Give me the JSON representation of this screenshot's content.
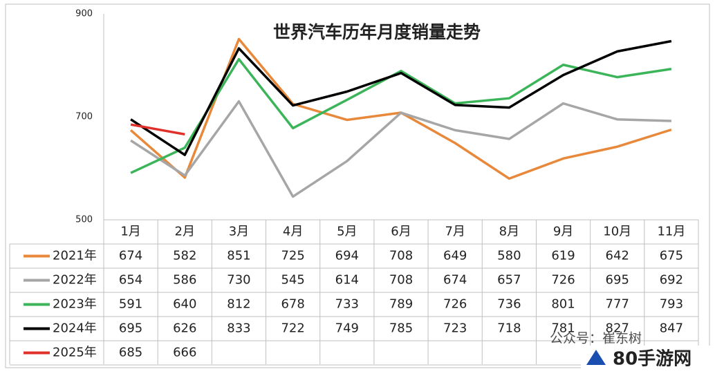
{
  "chart_data": {
    "type": "line",
    "title": "世界汽车历年月度销量走势",
    "categories": [
      "1月",
      "2月",
      "3月",
      "4月",
      "5月",
      "6月",
      "7月",
      "8月",
      "9月",
      "10月",
      "11月"
    ],
    "series": [
      {
        "name": "2021年",
        "color": "#e8883a",
        "values": [
          674,
          582,
          851,
          725,
          694,
          708,
          649,
          580,
          619,
          642,
          675
        ]
      },
      {
        "name": "2022年",
        "color": "#a6a6a6",
        "values": [
          654,
          586,
          730,
          545,
          614,
          708,
          674,
          657,
          726,
          695,
          692
        ]
      },
      {
        "name": "2023年",
        "color": "#3cb55a",
        "values": [
          591,
          640,
          812,
          678,
          733,
          789,
          726,
          736,
          801,
          777,
          793
        ]
      },
      {
        "name": "2024年",
        "color": "#000000",
        "values": [
          695,
          626,
          833,
          722,
          749,
          785,
          723,
          718,
          781,
          827,
          847
        ]
      },
      {
        "name": "2025年",
        "color": "#e0302a",
        "values": [
          685,
          666,
          null,
          null,
          null,
          null,
          null,
          null,
          null,
          null,
          null
        ]
      }
    ],
    "ylim": [
      500,
      900
    ],
    "yticks": [
      500,
      700,
      900
    ],
    "watermark": "公众号：崔东树",
    "logo": "80手游网"
  }
}
